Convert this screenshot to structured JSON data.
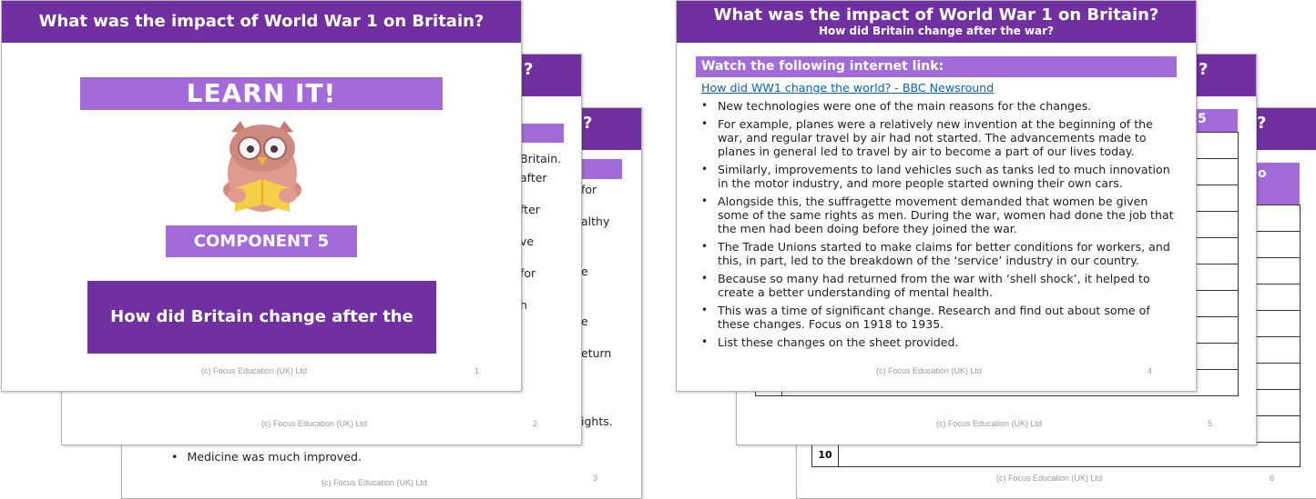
{
  "slide1": {
    "title": "What was the impact of World War 1 on Britain?",
    "learn_it": "LEARN IT!",
    "component": "COMPONENT 5",
    "question": "How did Britain change after the war?",
    "footer": "(c) Focus Education (UK) Ltd",
    "page": "1"
  },
  "slide2": {
    "header_fragment": "?",
    "fragments": [
      "Britain.",
      "after",
      "fter",
      "ve",
      "for",
      "h"
    ],
    "footer": "(c) Focus Education (UK) Ltd",
    "page": "2"
  },
  "slide3": {
    "header_fragment": "?",
    "fragments": [
      "for",
      "althy",
      "e",
      "e",
      "eturn",
      "ights."
    ],
    "last_bullet": "Medicine was much improved.",
    "footer": "(c) Focus Education (UK) Ltd",
    "page": "3"
  },
  "slide4": {
    "title": "What was the impact of World War 1 on Britain?",
    "subtitle": "How did Britain change after the war?",
    "section_heading": "Watch the following internet link:",
    "link_text": "How did WW1 change the world? - BBC Newsround",
    "bullets": [
      "New technologies were one of the main reasons for the changes.",
      "For example, planes were a relatively new invention at the beginning of the war, and regular travel by air had not started. The advancements made to planes in general led to travel by air to become a part of our lives today.",
      "Similarly, improvements to land vehicles such as tanks led to much innovation in the motor industry, and more people started owning their own cars.",
      "Alongside this, the suffragette movement demanded that women be given some of the same rights as men. During the war, women had done the job that the men had been doing before they joined the war.",
      "The Trade Unions started to make claims for better conditions for workers, and this, in part, led to the breakdown of the ‘service’ industry in our country.",
      "Because so many had returned from the war with ‘shell shock’, it helped to create a better understanding of mental health.",
      "This was a time of significant change. Research and find out about some of these changes. Focus on 1918 to 1935.",
      "List these changes on the sheet provided."
    ],
    "footer": "(c) Focus Education (UK) Ltd",
    "page": "4"
  },
  "slide5": {
    "header_fragment": "?",
    "table_fragment": "5",
    "footer": "(c) Focus Education (UK) Ltd",
    "page": "5"
  },
  "slide6": {
    "header_fragment": "?",
    "table_fragment": "o",
    "row_label": "10",
    "footer": "(c) Focus Education (UK) Ltd",
    "page": "6"
  },
  "colors": {
    "header_purple": "#7030a0",
    "lilac": "#a36bd8",
    "link_blue": "#0563c1"
  }
}
